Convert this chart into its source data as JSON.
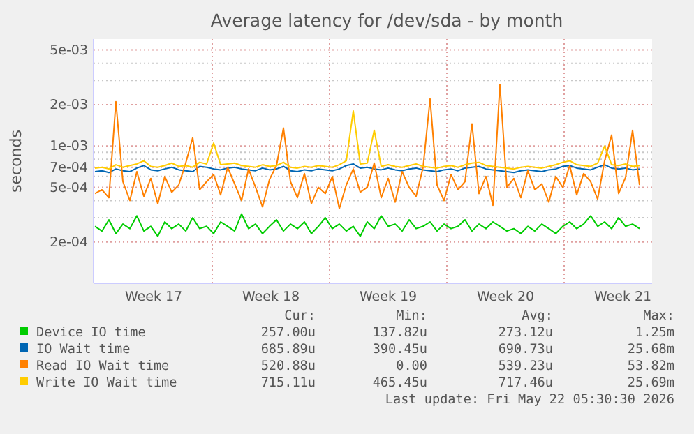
{
  "chart_data": {
    "type": "line",
    "title": "Average latency for /dev/sda - by month",
    "ylabel": "seconds",
    "log": "y",
    "grid": true,
    "legend": "bottom",
    "marker": "none",
    "line_style": "solid",
    "ylim": [
      0.0001,
      0.006
    ],
    "yticks": [
      {
        "value": 0.005,
        "label": "5e-03"
      },
      {
        "value": 0.004,
        "label": null
      },
      {
        "value": 0.003,
        "label": null
      },
      {
        "value": 0.002,
        "label": "2e-03"
      },
      {
        "value": 0.001,
        "label": "1e-03"
      },
      {
        "value": 0.0009,
        "label": null
      },
      {
        "value": 0.0008,
        "label": null
      },
      {
        "value": 0.0007,
        "label": "7e-04"
      },
      {
        "value": 0.0006,
        "label": null
      },
      {
        "value": 0.0005,
        "label": "5e-04"
      },
      {
        "value": 0.0004,
        "label": null
      },
      {
        "value": 0.0003,
        "label": null
      },
      {
        "value": 0.0002,
        "label": "2e-04"
      }
    ],
    "xlim": [
      "2026-04-19T22:00",
      "2026-05-23T06:00"
    ],
    "xticks": [
      {
        "value": "2026-04-23T12:00",
        "label": "Week 17"
      },
      {
        "value": "2026-04-27T00:00",
        "label": null
      },
      {
        "value": "2026-04-30T12:00",
        "label": "Week 18"
      },
      {
        "value": "2026-05-04T00:00",
        "label": null
      },
      {
        "value": "2026-05-07T12:00",
        "label": "Week 19"
      },
      {
        "value": "2026-05-11T00:00",
        "label": null
      },
      {
        "value": "2026-05-14T12:00",
        "label": "Week 20"
      },
      {
        "value": "2026-05-18T00:00",
        "label": null
      },
      {
        "value": "2026-05-21T12:00",
        "label": "Week 21"
      }
    ],
    "x": [
      "2026-04-20T00:00",
      "2026-04-20T10:00",
      "2026-04-20T20:00",
      "2026-04-21T06:00",
      "2026-04-21T16:00",
      "2026-04-22T02:00",
      "2026-04-22T12:00",
      "2026-04-22T22:00",
      "2026-04-23T08:00",
      "2026-04-23T18:00",
      "2026-04-24T04:00",
      "2026-04-24T14:00",
      "2026-04-25T00:00",
      "2026-04-25T10:00",
      "2026-04-25T20:00",
      "2026-04-26T06:00",
      "2026-04-26T16:00",
      "2026-04-27T02:00",
      "2026-04-27T12:00",
      "2026-04-27T22:00",
      "2026-04-28T08:00",
      "2026-04-28T18:00",
      "2026-04-29T04:00",
      "2026-04-29T14:00",
      "2026-04-30T00:00",
      "2026-04-30T10:00",
      "2026-04-30T20:00",
      "2026-05-01T06:00",
      "2026-05-01T16:00",
      "2026-05-02T02:00",
      "2026-05-02T12:00",
      "2026-05-02T22:00",
      "2026-05-03T08:00",
      "2026-05-03T18:00",
      "2026-05-04T04:00",
      "2026-05-04T14:00",
      "2026-05-05T00:00",
      "2026-05-05T10:00",
      "2026-05-05T20:00",
      "2026-05-06T06:00",
      "2026-05-06T16:00",
      "2026-05-07T02:00",
      "2026-05-07T12:00",
      "2026-05-07T22:00",
      "2026-05-08T08:00",
      "2026-05-08T18:00",
      "2026-05-09T04:00",
      "2026-05-09T14:00",
      "2026-05-10T00:00",
      "2026-05-10T10:00",
      "2026-05-10T20:00",
      "2026-05-11T06:00",
      "2026-05-11T16:00",
      "2026-05-12T02:00",
      "2026-05-12T12:00",
      "2026-05-12T22:00",
      "2026-05-13T08:00",
      "2026-05-13T18:00",
      "2026-05-14T04:00",
      "2026-05-14T14:00",
      "2026-05-15T00:00",
      "2026-05-15T10:00",
      "2026-05-15T20:00",
      "2026-05-16T06:00",
      "2026-05-16T16:00",
      "2026-05-17T02:00",
      "2026-05-17T12:00",
      "2026-05-17T22:00",
      "2026-05-18T08:00",
      "2026-05-18T18:00",
      "2026-05-19T04:00",
      "2026-05-19T14:00",
      "2026-05-20T00:00",
      "2026-05-20T10:00",
      "2026-05-20T20:00",
      "2026-05-21T06:00",
      "2026-05-21T16:00",
      "2026-05-22T02:00",
      "2026-05-22T12:00"
    ],
    "series": [
      {
        "name": "Device IO time",
        "color": "#00cc00",
        "values": [
          0.00026,
          0.00024,
          0.00029,
          0.00023,
          0.00027,
          0.00025,
          0.00031,
          0.00024,
          0.00026,
          0.00022,
          0.00028,
          0.00025,
          0.00027,
          0.00024,
          0.0003,
          0.00025,
          0.00026,
          0.00023,
          0.00028,
          0.00026,
          0.00024,
          0.00032,
          0.00025,
          0.00027,
          0.00023,
          0.00026,
          0.00029,
          0.00024,
          0.00027,
          0.00025,
          0.00028,
          0.00023,
          0.00026,
          0.0003,
          0.00025,
          0.00027,
          0.00024,
          0.00026,
          0.00022,
          0.00028,
          0.00025,
          0.00031,
          0.00026,
          0.00027,
          0.00024,
          0.00029,
          0.00025,
          0.00026,
          0.00028,
          0.00024,
          0.00027,
          0.00025,
          0.00026,
          0.00029,
          0.00024,
          0.00027,
          0.00025,
          0.00028,
          0.00026,
          0.00024,
          0.00025,
          0.00023,
          0.00026,
          0.00024,
          0.00027,
          0.00025,
          0.00023,
          0.00026,
          0.00028,
          0.00025,
          0.00027,
          0.00031,
          0.00026,
          0.00028,
          0.00025,
          0.0003,
          0.00026,
          0.00027,
          0.00025
        ]
      },
      {
        "name": "IO Wait time",
        "color": "#0066b3",
        "values": [
          0.00065,
          0.00066,
          0.00064,
          0.00068,
          0.00066,
          0.00065,
          0.00069,
          0.00072,
          0.00067,
          0.00066,
          0.00068,
          0.0007,
          0.00067,
          0.00066,
          0.00065,
          0.00071,
          0.0007,
          0.00068,
          0.00067,
          0.00069,
          0.0007,
          0.00068,
          0.00067,
          0.00066,
          0.00069,
          0.00067,
          0.00068,
          0.00071,
          0.00066,
          0.00065,
          0.00067,
          0.00066,
          0.00068,
          0.00067,
          0.00066,
          0.00068,
          0.00072,
          0.00074,
          0.00069,
          0.0007,
          0.00068,
          0.00067,
          0.00069,
          0.00067,
          0.00066,
          0.00068,
          0.00069,
          0.00067,
          0.00066,
          0.00065,
          0.00067,
          0.00068,
          0.00066,
          0.00069,
          0.0007,
          0.00071,
          0.00068,
          0.00067,
          0.00066,
          0.00065,
          0.00064,
          0.00066,
          0.00067,
          0.00066,
          0.00065,
          0.00067,
          0.00068,
          0.00071,
          0.00072,
          0.00069,
          0.00068,
          0.00067,
          0.0007,
          0.00073,
          0.00069,
          0.00068,
          0.00069,
          0.00067,
          0.00068
        ]
      },
      {
        "name": "Read IO Wait time",
        "color": "#ff8000",
        "values": [
          0.00045,
          0.00048,
          0.00042,
          0.0021,
          0.00055,
          0.0004,
          0.00065,
          0.00043,
          0.00058,
          0.00038,
          0.0006,
          0.00046,
          0.00052,
          0.00075,
          0.00115,
          0.00048,
          0.00055,
          0.00062,
          0.00044,
          0.0007,
          0.00053,
          0.0004,
          0.00068,
          0.0005,
          0.00036,
          0.00057,
          0.00072,
          0.00135,
          0.00055,
          0.00042,
          0.00063,
          0.00038,
          0.0005,
          0.00045,
          0.0006,
          0.00035,
          0.00052,
          0.00068,
          0.00046,
          0.0005,
          0.00075,
          0.00042,
          0.00058,
          0.00039,
          0.00065,
          0.0005,
          0.00043,
          0.0007,
          0.0022,
          0.00052,
          0.0004,
          0.00062,
          0.00048,
          0.00055,
          0.00145,
          0.00045,
          0.0006,
          0.00037,
          0.0028,
          0.0005,
          0.00058,
          0.00042,
          0.00066,
          0.00048,
          0.00053,
          0.00039,
          0.0006,
          0.0005,
          0.00072,
          0.00044,
          0.00063,
          0.00055,
          0.00041,
          0.00078,
          0.0012,
          0.00045,
          0.00059,
          0.0013,
          0.00052
        ]
      },
      {
        "name": "Write IO Wait time",
        "color": "#ffcc00",
        "values": [
          0.00069,
          0.0007,
          0.00068,
          0.00073,
          0.0007,
          0.00072,
          0.00074,
          0.00078,
          0.00071,
          0.0007,
          0.00072,
          0.00075,
          0.00071,
          0.00072,
          0.0007,
          0.00076,
          0.00074,
          0.00105,
          0.00073,
          0.00074,
          0.00075,
          0.00072,
          0.00071,
          0.0007,
          0.00073,
          0.00071,
          0.00072,
          0.00076,
          0.0007,
          0.00069,
          0.00071,
          0.0007,
          0.00072,
          0.00071,
          0.0007,
          0.00073,
          0.00078,
          0.0018,
          0.00074,
          0.00075,
          0.0013,
          0.00071,
          0.00073,
          0.00071,
          0.0007,
          0.00072,
          0.00074,
          0.00071,
          0.0007,
          0.00069,
          0.00071,
          0.00072,
          0.0007,
          0.00073,
          0.00075,
          0.00076,
          0.00072,
          0.00071,
          0.0007,
          0.00069,
          0.00068,
          0.0007,
          0.00071,
          0.0007,
          0.00069,
          0.00071,
          0.00073,
          0.00076,
          0.00078,
          0.00073,
          0.00072,
          0.00071,
          0.00075,
          0.001,
          0.00073,
          0.00072,
          0.00074,
          0.00071,
          0.00072
        ]
      }
    ],
    "annotations": [
      "Cur:",
      "Min:",
      "Avg:",
      "Max:",
      "257.00u",
      "137.82u",
      "273.12u",
      "1.25m",
      "685.89u",
      "390.45u",
      "690.73u",
      "25.68m",
      "520.88u",
      "0.00",
      "539.23u",
      "53.82m",
      "715.11u",
      "465.45u",
      "717.46u",
      "25.69m",
      "Last update: Fri May 22 05:30:30 2026"
    ]
  }
}
